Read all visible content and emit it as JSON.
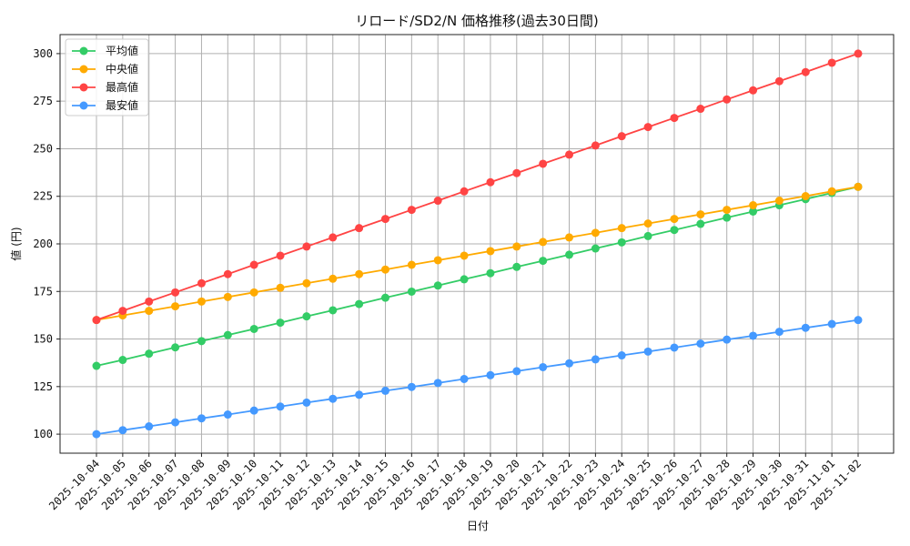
{
  "chart_data": {
    "type": "line",
    "title": "リロード/SD2/N 価格推移(過去30日間)",
    "xlabel": "日付",
    "ylabel": "値 (円)",
    "ylim": [
      90,
      310
    ],
    "yticks": [
      100,
      125,
      150,
      175,
      200,
      225,
      250,
      275,
      300
    ],
    "grid": true,
    "legend_position": "top-left",
    "x": [
      "2025-10-04",
      "2025-10-05",
      "2025-10-06",
      "2025-10-07",
      "2025-10-08",
      "2025-10-09",
      "2025-10-10",
      "2025-10-11",
      "2025-10-12",
      "2025-10-13",
      "2025-10-14",
      "2025-10-15",
      "2025-10-16",
      "2025-10-17",
      "2025-10-18",
      "2025-10-19",
      "2025-10-20",
      "2025-10-21",
      "2025-10-22",
      "2025-10-23",
      "2025-10-24",
      "2025-10-25",
      "2025-10-26",
      "2025-10-27",
      "2025-10-28",
      "2025-10-29",
      "2025-10-30",
      "2025-10-31",
      "2025-11-01",
      "2025-11-02"
    ],
    "series": [
      {
        "name": "平均値",
        "color": "#33cc66",
        "values": [
          135.9,
          139.0,
          142.3,
          145.6,
          148.9,
          152.1,
          155.3,
          158.6,
          161.9,
          165.1,
          168.4,
          171.7,
          174.9,
          178.1,
          181.4,
          184.6,
          187.9,
          191.1,
          194.3,
          197.6,
          200.8,
          204.1,
          207.3,
          210.5,
          213.8,
          217.0,
          220.3,
          223.5,
          226.8,
          230.0
        ]
      },
      {
        "name": "中央値",
        "color": "#ffaa00",
        "values": [
          160.0,
          162.4,
          164.8,
          167.2,
          169.7,
          172.1,
          174.5,
          176.9,
          179.3,
          181.7,
          184.1,
          186.5,
          189.0,
          191.4,
          193.8,
          196.2,
          198.6,
          201.0,
          203.4,
          205.8,
          208.3,
          210.7,
          213.1,
          215.5,
          217.9,
          220.3,
          222.7,
          225.1,
          227.6,
          230.0
        ]
      },
      {
        "name": "最高値",
        "color": "#ff4444",
        "values": [
          160.0,
          164.8,
          169.7,
          174.5,
          179.3,
          184.1,
          189.0,
          193.8,
          198.6,
          203.4,
          208.3,
          213.1,
          217.9,
          222.7,
          227.6,
          232.4,
          237.2,
          242.1,
          246.9,
          251.7,
          256.6,
          261.4,
          266.2,
          271.0,
          275.9,
          280.7,
          285.5,
          290.3,
          295.2,
          300.0
        ]
      },
      {
        "name": "最安値",
        "color": "#4499ff",
        "values": [
          100.0,
          102.1,
          104.1,
          106.2,
          108.3,
          110.3,
          112.4,
          114.5,
          116.6,
          118.6,
          120.7,
          122.8,
          124.8,
          126.9,
          129.0,
          131.0,
          133.1,
          135.2,
          137.2,
          139.3,
          141.4,
          143.4,
          145.5,
          147.6,
          149.7,
          151.7,
          153.8,
          155.9,
          157.9,
          160.0
        ]
      }
    ]
  }
}
